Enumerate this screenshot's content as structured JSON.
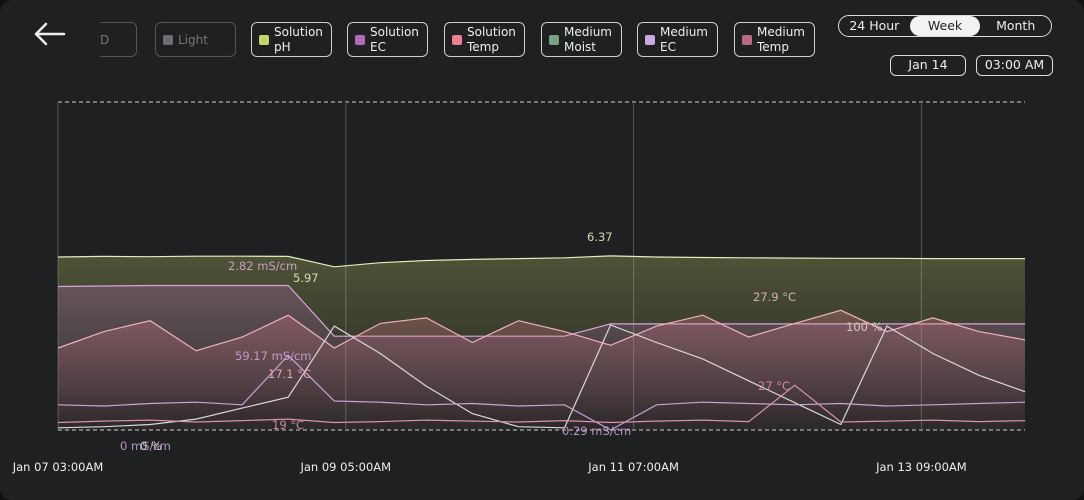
{
  "toolbar": {
    "hidden_legend": [
      {
        "label": "D",
        "color": "#4a4b4e"
      },
      {
        "label": "Light",
        "color": "#6b6c6f"
      }
    ],
    "range_toggle": {
      "options": [
        "24 Hour",
        "Week",
        "Month"
      ],
      "selected": 1
    },
    "date": "Jan 14",
    "time": "03:00 AM"
  },
  "chart_data": {
    "type": "line",
    "x": [
      0,
      8,
      16,
      24,
      32,
      40,
      48,
      56,
      64,
      72,
      80,
      88,
      96,
      104,
      112,
      120,
      128,
      136,
      144,
      152,
      160,
      168
    ],
    "xlim": [
      0,
      168
    ],
    "xticks": [
      {
        "value": 0,
        "label": "Jan 07 03:00AM"
      },
      {
        "value": 50,
        "label": "Jan 09 05:00AM"
      },
      {
        "value": 100,
        "label": "Jan 11 07:00AM"
      },
      {
        "value": 150,
        "label": "Jan 13 09:00AM"
      }
    ],
    "series": [
      {
        "name": "Solution pH",
        "color": "#c8d46a",
        "line": "#e6ebb8",
        "fill": true,
        "ylim": [
          0,
          12
        ],
        "values": [
          6.33,
          6.35,
          6.34,
          6.36,
          6.36,
          6.35,
          5.97,
          6.12,
          6.2,
          6.24,
          6.27,
          6.3,
          6.37,
          6.33,
          6.31,
          6.3,
          6.29,
          6.28,
          6.28,
          6.27,
          6.27,
          6.27
        ]
      },
      {
        "name": "Solution EC",
        "color": "#b06bc0",
        "line": "#d6a6d6",
        "fill": true,
        "ylim": [
          0,
          6.4
        ],
        "values": [
          2.8,
          2.81,
          2.82,
          2.82,
          2.82,
          2.82,
          1.83,
          1.83,
          1.83,
          1.83,
          1.83,
          1.83,
          2.07,
          2.07,
          2.07,
          2.07,
          2.07,
          2.07,
          2.07,
          2.07,
          2.07,
          2.07
        ]
      },
      {
        "name": "Solution Temp",
        "color": "#e8808f",
        "line": "#f0b0c0",
        "fill": true,
        "ylim": [
          6,
          66
        ],
        "values": [
          21,
          24,
          26,
          20.5,
          23,
          27,
          21,
          25.5,
          26.5,
          22,
          26,
          24,
          21.5,
          25,
          27,
          23,
          25.5,
          27.9,
          24,
          26.5,
          24,
          22.5
        ]
      },
      {
        "name": "Medium Moist",
        "color": "#7aa07f",
        "line": "#d8d8d8",
        "fill": false,
        "ylim": [
          0,
          300
        ],
        "values": [
          2,
          3,
          5,
          10,
          20,
          30,
          95,
          70,
          40,
          15,
          3,
          2,
          96,
          80,
          65,
          45,
          25,
          5,
          95,
          70,
          50,
          35
        ]
      },
      {
        "name": "Medium EC",
        "color": "#c8a8de",
        "line": "#c9a3d8",
        "fill": false,
        "ylim": [
          0,
          260
        ],
        "values": [
          20,
          19,
          21,
          22,
          20,
          59.17,
          23,
          22,
          20,
          21,
          19,
          20,
          0,
          20,
          22,
          21,
          20,
          21,
          19,
          20,
          21,
          22
        ]
      },
      {
        "name": "Medium Temp",
        "color": "#b86a7c",
        "line": "#d88fb0",
        "fill": false,
        "ylim": [
          18,
          84
        ],
        "values": [
          19.5,
          19.8,
          20,
          19.6,
          19.9,
          20.2,
          19.5,
          19.7,
          20,
          19.8,
          19.6,
          19.9,
          19.5,
          19.8,
          20,
          19.7,
          27,
          19.6,
          19.8,
          20,
          19.7,
          19.9
        ]
      }
    ],
    "annotations": [
      "2.82 mS/cm",
      "5.97",
      "6.37",
      "27.9 °C",
      "100 %",
      "59.17 mS/cm",
      "17.1 °C",
      "27 °C",
      "19 °C",
      "0 mS/cm",
      "0 %",
      "0.29 mS/cm"
    ]
  }
}
